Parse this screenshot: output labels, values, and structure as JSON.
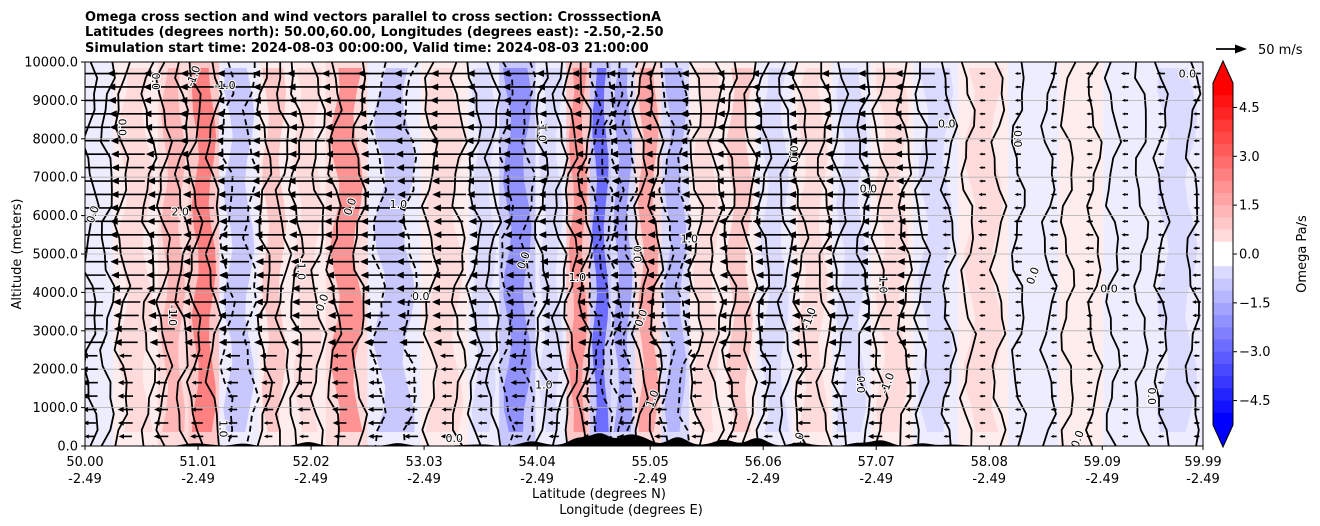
{
  "chart_data": {
    "type": "contour-cross-section",
    "title_lines": [
      "Omega cross section and wind vectors parallel to cross section: CrosssectionA",
      "Latitudes (degrees north): 50.00,60.00, Longitudes (degrees east): -2.50,-2.50",
      "Simulation start time: 2024-08-03 00:00:00, Valid time: 2024-08-03 21:00:00"
    ],
    "ylabel": "Altitude (meters)",
    "xlabel_1": "Latitude (degrees N)",
    "xlabel_2": "Longitude (degrees E)",
    "ylim": [
      0,
      10000
    ],
    "yticks": [
      {
        "value": 0,
        "label": "0.0"
      },
      {
        "value": 1000,
        "label": "1000.0"
      },
      {
        "value": 2000,
        "label": "2000.0"
      },
      {
        "value": 3000,
        "label": "3000.0"
      },
      {
        "value": 4000,
        "label": "4000.0"
      },
      {
        "value": 5000,
        "label": "5000.0"
      },
      {
        "value": 6000,
        "label": "6000.0"
      },
      {
        "value": 7000,
        "label": "7000.0"
      },
      {
        "value": 8000,
        "label": "8000.0"
      },
      {
        "value": 9000,
        "label": "9000.0"
      },
      {
        "value": 10000,
        "label": "10000.0"
      }
    ],
    "xlim": [
      50.0,
      59.99
    ],
    "xticks": [
      {
        "lat": 50.0,
        "lat_label": "50.00",
        "lon_label": "-2.49"
      },
      {
        "lat": 51.01,
        "lat_label": "51.01",
        "lon_label": "-2.49"
      },
      {
        "lat": 52.02,
        "lat_label": "52.02",
        "lon_label": "-2.49"
      },
      {
        "lat": 53.03,
        "lat_label": "53.03",
        "lon_label": "-2.49"
      },
      {
        "lat": 54.04,
        "lat_label": "54.04",
        "lon_label": "-2.49"
      },
      {
        "lat": 55.05,
        "lat_label": "55.05",
        "lon_label": "-2.49"
      },
      {
        "lat": 56.06,
        "lat_label": "56.06",
        "lon_label": "-2.49"
      },
      {
        "lat": 57.07,
        "lat_label": "57.07",
        "lon_label": "-2.49"
      },
      {
        "lat": 58.08,
        "lat_label": "58.08",
        "lon_label": "-2.49"
      },
      {
        "lat": 59.09,
        "lat_label": "59.09",
        "lon_label": "-2.49"
      },
      {
        "lat": 59.99,
        "lat_label": "59.99",
        "lon_label": "-2.49"
      }
    ],
    "grid": true,
    "colorbar": {
      "label": "Omega Pa/s",
      "range": [
        -5.25,
        5.25
      ],
      "step": 0.375,
      "ticks": [
        {
          "value": 4.5,
          "label": "4.5"
        },
        {
          "value": 3.0,
          "label": "3.0"
        },
        {
          "value": 1.5,
          "label": "1.5"
        },
        {
          "value": 0.0,
          "label": "0.0"
        },
        {
          "value": -1.5,
          "label": "−1.5"
        },
        {
          "value": -3.0,
          "label": "−3.0"
        },
        {
          "value": -4.5,
          "label": "−4.5"
        }
      ],
      "extend": "both",
      "cmap": "bwr",
      "color_positive": "#ff0000",
      "color_negative": "#0000ff"
    },
    "quiver_key": {
      "label": "50 m/s",
      "speed": 50
    },
    "omega_bands": [
      {
        "lat": 50.05,
        "value": -0.3
      },
      {
        "lat": 50.45,
        "value": 0.4
      },
      {
        "lat": 50.85,
        "value": 1.2
      },
      {
        "lat": 51.0,
        "value": 2.4
      },
      {
        "lat": 51.4,
        "value": -0.8
      },
      {
        "lat": 51.7,
        "value": 1.0
      },
      {
        "lat": 51.95,
        "value": 0.6
      },
      {
        "lat": 52.35,
        "value": 2.0
      },
      {
        "lat": 52.7,
        "value": -0.9
      },
      {
        "lat": 53.3,
        "value": 0.5
      },
      {
        "lat": 53.55,
        "value": -0.5
      },
      {
        "lat": 53.85,
        "value": -2.2
      },
      {
        "lat": 54.2,
        "value": -0.6
      },
      {
        "lat": 54.4,
        "value": 2.2
      },
      {
        "lat": 54.62,
        "value": -3.0
      },
      {
        "lat": 54.78,
        "value": -1.6
      },
      {
        "lat": 55.05,
        "value": 1.6
      },
      {
        "lat": 55.25,
        "value": -1.2
      },
      {
        "lat": 55.55,
        "value": 0.6
      },
      {
        "lat": 55.85,
        "value": 0.9
      },
      {
        "lat": 56.15,
        "value": -0.6
      },
      {
        "lat": 56.5,
        "value": 0.6
      },
      {
        "lat": 56.85,
        "value": -0.4
      },
      {
        "lat": 57.2,
        "value": 0.5
      },
      {
        "lat": 57.6,
        "value": -0.4
      },
      {
        "lat": 58.0,
        "value": 0.4
      },
      {
        "lat": 58.5,
        "value": -0.3
      },
      {
        "lat": 58.9,
        "value": 0.3
      },
      {
        "lat": 59.3,
        "value": -0.3
      },
      {
        "lat": 59.75,
        "value": -0.4
      }
    ],
    "contour_labels": [
      {
        "lat": 50.6,
        "alt": 9500,
        "label": "0.0"
      },
      {
        "lat": 51.0,
        "alt": 9600,
        "label": "-1.0"
      },
      {
        "lat": 51.25,
        "alt": 9300,
        "label": "-1.0"
      },
      {
        "lat": 50.3,
        "alt": 8300,
        "label": "0.0"
      },
      {
        "lat": 50.1,
        "alt": 6000,
        "label": "0.0"
      },
      {
        "lat": 50.85,
        "alt": 6000,
        "label": "2.0"
      },
      {
        "lat": 50.75,
        "alt": 3400,
        "label": "-1.0"
      },
      {
        "lat": 52.4,
        "alt": 6200,
        "label": "0.0"
      },
      {
        "lat": 52.8,
        "alt": 6200,
        "label": "1.0"
      },
      {
        "lat": 51.9,
        "alt": 4600,
        "label": "-1.0"
      },
      {
        "lat": 52.15,
        "alt": 3700,
        "label": "0.0"
      },
      {
        "lat": 53.0,
        "alt": 3800,
        "label": "0.0"
      },
      {
        "lat": 54.05,
        "alt": 8200,
        "label": "-1.0"
      },
      {
        "lat": 53.95,
        "alt": 4800,
        "label": "0.0"
      },
      {
        "lat": 54.4,
        "alt": 4300,
        "label": "1.0"
      },
      {
        "lat": 54.9,
        "alt": 5000,
        "label": "0.0"
      },
      {
        "lat": 55.0,
        "alt": 3300,
        "label": "0.0"
      },
      {
        "lat": 55.4,
        "alt": 5300,
        "label": "1.0"
      },
      {
        "lat": 56.3,
        "alt": 7600,
        "label": "0.0"
      },
      {
        "lat": 56.5,
        "alt": 3300,
        "label": "-1.0"
      },
      {
        "lat": 57.0,
        "alt": 6600,
        "label": "0.0"
      },
      {
        "lat": 57.1,
        "alt": 4200,
        "label": "1.0"
      },
      {
        "lat": 57.2,
        "alt": 1600,
        "label": "-1.0"
      },
      {
        "lat": 57.7,
        "alt": 8300,
        "label": "0.0"
      },
      {
        "lat": 58.3,
        "alt": 8000,
        "label": "0.0"
      },
      {
        "lat": 58.5,
        "alt": 4400,
        "label": "0.0"
      },
      {
        "lat": 59.15,
        "alt": 4000,
        "label": "0.0"
      },
      {
        "lat": 59.5,
        "alt": 1300,
        "label": "0.0"
      },
      {
        "lat": 56.4,
        "alt": 100,
        "label": "0.0"
      },
      {
        "lat": 53.3,
        "alt": 100,
        "label": "0.0"
      },
      {
        "lat": 51.2,
        "alt": 450,
        "label": "1.0"
      },
      {
        "lat": 55.1,
        "alt": 1200,
        "label": "1.0"
      },
      {
        "lat": 54.1,
        "alt": 1500,
        "label": "1.0"
      },
      {
        "lat": 56.9,
        "alt": 1600,
        "label": "0.0"
      },
      {
        "lat": 58.9,
        "alt": 150,
        "label": "0.0"
      },
      {
        "lat": 59.85,
        "alt": 9600,
        "label": "0.0"
      }
    ]
  }
}
